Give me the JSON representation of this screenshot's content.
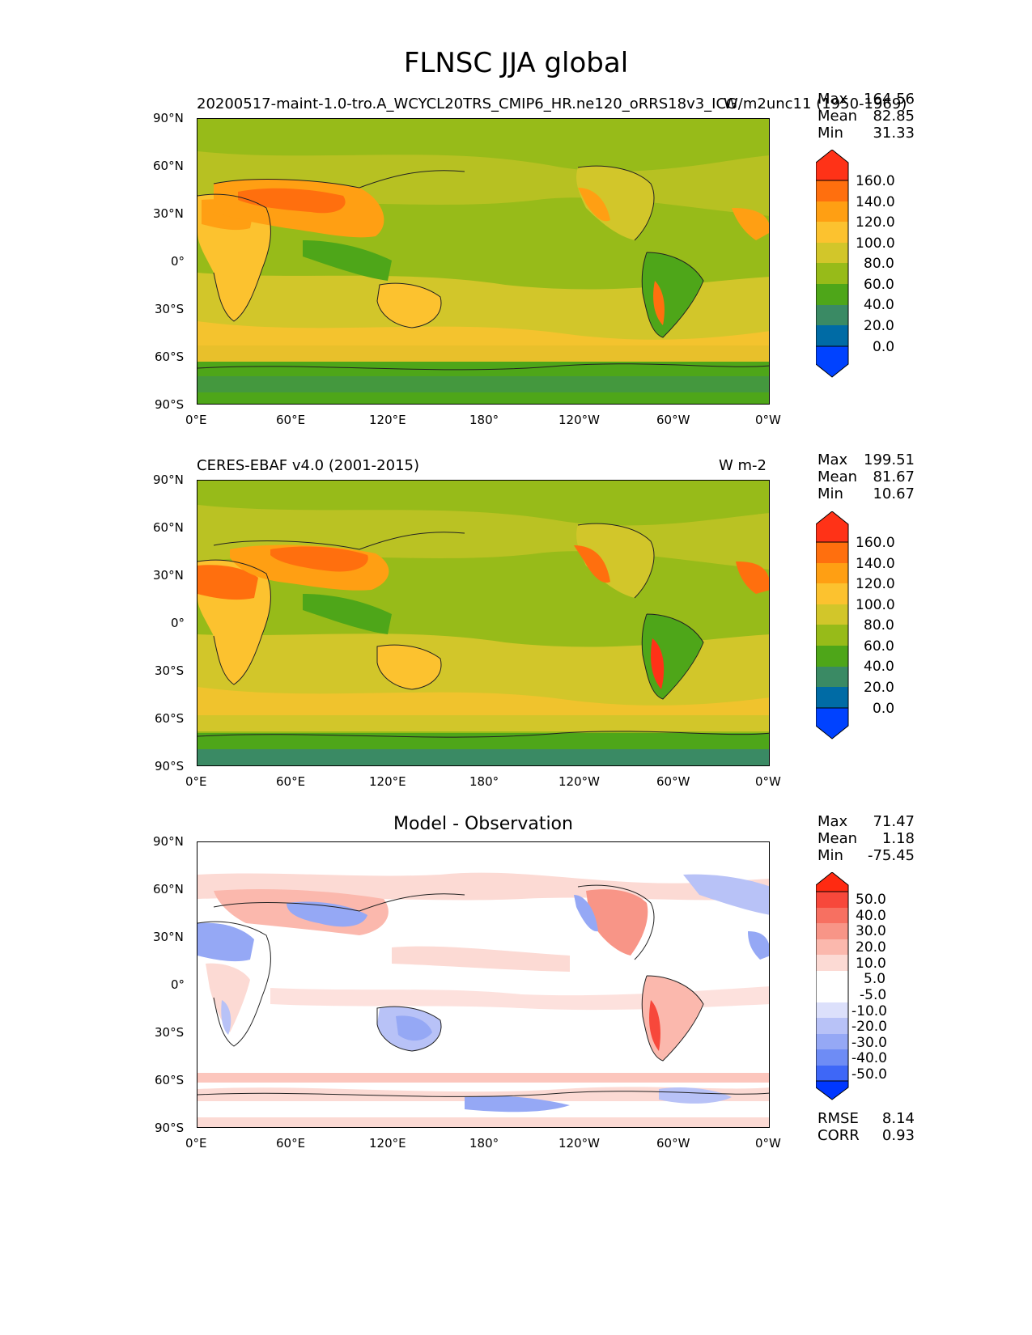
{
  "figure": {
    "title": "FLNSC JJA global"
  },
  "axes": {
    "lat_ticks": [
      "90°N",
      "60°N",
      "30°N",
      "0°",
      "30°S",
      "60°S",
      "90°S"
    ],
    "lon_ticks": [
      "0°E",
      "60°E",
      "120°E",
      "180°",
      "120°W",
      "60°W",
      "0°W"
    ]
  },
  "panels": [
    {
      "title_left": "20200517-maint-1.0-tro.A_WCYCL20TRS_CMIP6_HR.ne120_oRRS18v3_ICG",
      "title_right": "W/m2unc11 (1950-1969)",
      "stats": [
        {
          "label": "Max",
          "value": "164.56"
        },
        {
          "label": "Mean",
          "value": "82.85"
        },
        {
          "label": "Min",
          "value": "31.33"
        }
      ],
      "colorbar_labels": [
        "160.0",
        "140.0",
        "120.0",
        "100.0",
        "80.0",
        "60.0",
        "40.0",
        "20.0",
        "0.0"
      ]
    },
    {
      "title_left": "CERES-EBAF v4.0 (2001-2015)",
      "title_right": "W m-2",
      "stats": [
        {
          "label": "Max",
          "value": "199.51"
        },
        {
          "label": "Mean",
          "value": "81.67"
        },
        {
          "label": "Min",
          "value": "10.67"
        }
      ],
      "colorbar_labels": [
        "160.0",
        "140.0",
        "120.0",
        "100.0",
        "80.0",
        "60.0",
        "40.0",
        "20.0",
        "0.0"
      ]
    },
    {
      "title_center": "Model - Observation",
      "stats": [
        {
          "label": "Max",
          "value": "71.47"
        },
        {
          "label": "Mean",
          "value": "1.18"
        },
        {
          "label": "Min",
          "value": "-75.45"
        }
      ],
      "colorbar_labels": [
        "50.0",
        "40.0",
        "30.0",
        "20.0",
        "10.0",
        "5.0",
        "-5.0",
        "-10.0",
        "-20.0",
        "-30.0",
        "-40.0",
        "-50.0"
      ],
      "metrics": [
        {
          "label": "RMSE",
          "value": "8.14"
        },
        {
          "label": "CORR",
          "value": "0.93"
        }
      ]
    }
  ],
  "colors": {
    "abs_scale": [
      "#0042ff",
      "#006ba5",
      "#3a8a64",
      "#4ea619",
      "#97bb19",
      "#d2c62a",
      "#fcc22f",
      "#ff9f13",
      "#ff6f0e",
      "#ff3217"
    ],
    "diff_scale": [
      "#0037ff",
      "#3e67f7",
      "#6e8cf5",
      "#95a8f5",
      "#b8c2f7",
      "#dce0fb",
      "#ffffff",
      "#fcdad4",
      "#fbb8ad",
      "#f89587",
      "#f77061",
      "#f7483b",
      "#ff2a11"
    ]
  }
}
